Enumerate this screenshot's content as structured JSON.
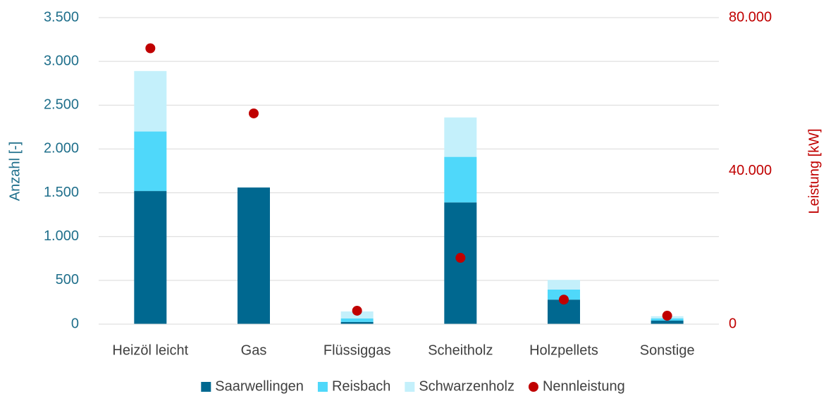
{
  "chart_data": {
    "type": "bar",
    "stacked": true,
    "categories": [
      "Heizöl leicht",
      "Gas",
      "Flüssiggas",
      "Scheitholz",
      "Holzpellets",
      "Sonstige"
    ],
    "series": [
      {
        "name": "Saarwellingen",
        "color": "#006890",
        "values": [
          1520,
          1560,
          25,
          1390,
          280,
          40
        ]
      },
      {
        "name": "Reisbach",
        "color": "#4fd8fa",
        "values": [
          680,
          0,
          40,
          520,
          115,
          25
        ]
      },
      {
        "name": "Schwarzenholz",
        "color": "#c4f0fb",
        "values": [
          690,
          0,
          80,
          450,
          110,
          25
        ]
      },
      {
        "name": "Nennleistung",
        "type": "scatter",
        "axis": "y2",
        "color": "#c00000",
        "values": [
          72000,
          55000,
          3500,
          17300,
          6400,
          2200
        ]
      }
    ],
    "ylabel": "Anzahl [-]",
    "y2label": "Leistung [kW]",
    "ylim": [
      0,
      3500
    ],
    "yticks": [
      0,
      500,
      {
        "value": 1000,
        "label": "1.000"
      },
      {
        "value": 1500,
        "label": "1.500"
      },
      {
        "value": 2000,
        "label": "2.000"
      },
      {
        "value": 2500,
        "label": "2.500"
      },
      {
        "value": 3000,
        "label": "3.000"
      },
      {
        "value": 3500,
        "label": "3.500"
      }
    ],
    "y2lim": [
      0,
      80000
    ],
    "y2ticks": [
      0,
      {
        "value": 40000,
        "label": "40.000"
      },
      {
        "value": 80000,
        "label": "80.000"
      }
    ],
    "grid": true,
    "legend": "bottom"
  }
}
